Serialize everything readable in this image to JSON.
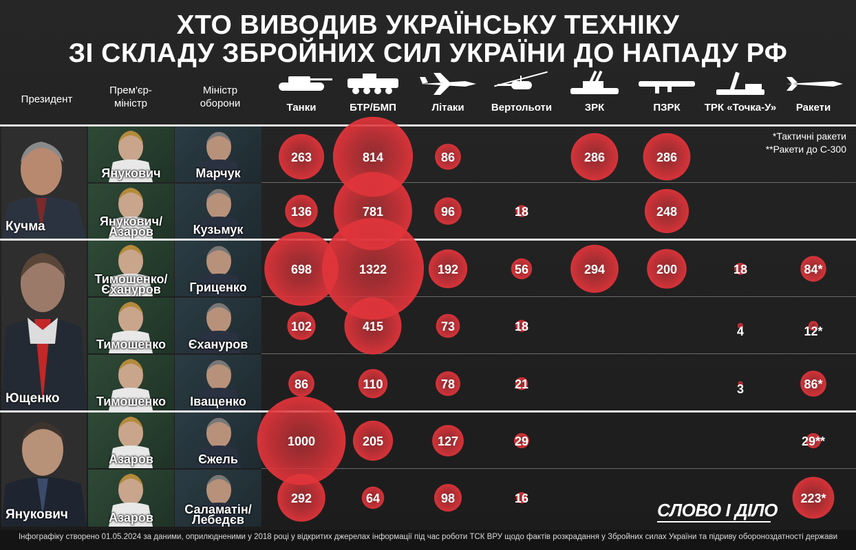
{
  "title_line1": "ХТО ВИВОДИВ УКРАЇНСЬКУ ТЕХНІКУ",
  "title_line2": "ЗІ СКЛАДУ ЗБРОЙНИХ СИЛ УКРАЇНИ ДО НАПАДУ РФ",
  "headers": {
    "president": "Президент",
    "pm": "Прем'єр-\nміністр",
    "minister": "Міністр\nоборони"
  },
  "notes": [
    "*Тактичні ракети",
    "**Ракети до С-300"
  ],
  "footer": "Інфографіку створено 01.05.2024 за даними, оприлюдненими у 2018 році у відкритих джерелах інформації під час роботи ТСК ВРУ щодо фактів розкрадання у Збройних силах України та підриву обороноздатності держави",
  "logo": "СЛОВО І ДІЛО",
  "colors": {
    "bubble": "#e0343a",
    "background": "#222222",
    "text": "#ffffff"
  },
  "presidents": [
    "Кучма",
    "Ющенко",
    "Янукович"
  ],
  "rows": [
    {
      "pm": "Янукович",
      "minister": "Марчук"
    },
    {
      "pm": "Янукович/\nАзаров",
      "minister": "Кузьмук"
    },
    {
      "pm": "Тимошенко/\nЄхануров",
      "minister": "Гриценко"
    },
    {
      "pm": "Тимошенко",
      "minister": "Єхануров"
    },
    {
      "pm": "Тимошенко",
      "minister": "Іващенко"
    },
    {
      "pm": "Азаров",
      "minister": "Єжель"
    },
    {
      "pm": "Азаров",
      "minister": "Саламатін/\nЛебедєв"
    }
  ],
  "chart_data": {
    "type": "bubble-table",
    "title": "ХТО ВИВОДИВ УКРАЇНСЬКУ ТЕХНІКУ ЗІ СКЛАДУ ЗБРОЙНИХ СИЛ УКРАЇНИ ДО НАПАДУ РФ",
    "categories": [
      "Танки",
      "БТР/БМП",
      "Літаки",
      "Вертольоти",
      "ЗРК",
      "ПЗРК",
      "ТРК «Точка-У»",
      "Ракети"
    ],
    "icons": [
      "tank-icon",
      "apc-icon",
      "plane-icon",
      "helicopter-icon",
      "sam-system-icon",
      "manpads-icon",
      "tochka-u-icon",
      "missile-icon"
    ],
    "rows": [
      "Янукович / Марчук",
      "Янукович/Азаров / Кузьмук",
      "Тимошенко/Єхануров / Гриценко",
      "Тимошенко / Єхануров",
      "Тимошенко / Іващенко",
      "Азаров / Єжель",
      "Азаров / Саламатін/Лебедєв"
    ],
    "values": [
      [
        263,
        814,
        86,
        null,
        286,
        286,
        null,
        null
      ],
      [
        136,
        781,
        96,
        18,
        null,
        248,
        null,
        null
      ],
      [
        698,
        1322,
        192,
        56,
        294,
        200,
        18,
        84
      ],
      [
        102,
        415,
        73,
        18,
        null,
        null,
        4,
        12
      ],
      [
        86,
        110,
        78,
        21,
        null,
        null,
        3,
        86
      ],
      [
        1000,
        205,
        127,
        29,
        null,
        null,
        null,
        29
      ],
      [
        292,
        64,
        98,
        16,
        null,
        null,
        null,
        223
      ]
    ],
    "value_suffix": [
      [
        "",
        "",
        "",
        "",
        "",
        "",
        "",
        ""
      ],
      [
        "",
        "",
        "",
        "",
        "",
        "",
        "",
        ""
      ],
      [
        "",
        "",
        "",
        "",
        "",
        "",
        "",
        "*"
      ],
      [
        "",
        "",
        "",
        "",
        "",
        "",
        "",
        "*"
      ],
      [
        "",
        "",
        "",
        "",
        "",
        "",
        "",
        "*"
      ],
      [
        "",
        "",
        "",
        "",
        "",
        "",
        "",
        "**"
      ],
      [
        "",
        "",
        "",
        "",
        "",
        "",
        "",
        "*"
      ]
    ]
  }
}
